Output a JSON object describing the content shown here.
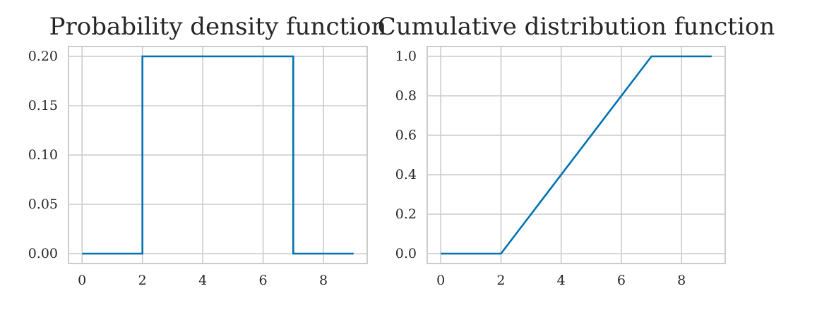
{
  "colors": {
    "line": "#0072B2",
    "grid": "#cccccc",
    "spine": "#cccccc",
    "text": "#262626"
  },
  "chart_data": [
    {
      "type": "line",
      "title": "Probability density function",
      "xlim": [
        -0.45,
        9.45
      ],
      "ylim": [
        -0.01,
        0.21
      ],
      "xticks": [
        0,
        2,
        4,
        6,
        8
      ],
      "xtick_labels": [
        "0",
        "2",
        "4",
        "6",
        "8"
      ],
      "yticks": [
        0,
        0.05,
        0.1,
        0.15,
        0.2
      ],
      "ytick_labels": [
        "0.00",
        "0.05",
        "0.10",
        "0.15",
        "0.20"
      ],
      "grid": true,
      "x": [
        0,
        2,
        2,
        7,
        7,
        9
      ],
      "y": [
        0,
        0,
        0.2,
        0.2,
        0,
        0
      ]
    },
    {
      "type": "line",
      "title": "Cumulative distribution function",
      "xlim": [
        -0.45,
        9.45
      ],
      "ylim": [
        -0.05,
        1.05
      ],
      "xticks": [
        0,
        2,
        4,
        6,
        8
      ],
      "xtick_labels": [
        "0",
        "2",
        "4",
        "6",
        "8"
      ],
      "yticks": [
        0,
        0.2,
        0.4,
        0.6,
        0.8,
        1.0
      ],
      "ytick_labels": [
        "0.0",
        "0.2",
        "0.4",
        "0.6",
        "0.8",
        "1.0"
      ],
      "grid": true,
      "x": [
        0,
        2,
        7,
        9
      ],
      "y": [
        0,
        0,
        1,
        1
      ]
    }
  ]
}
